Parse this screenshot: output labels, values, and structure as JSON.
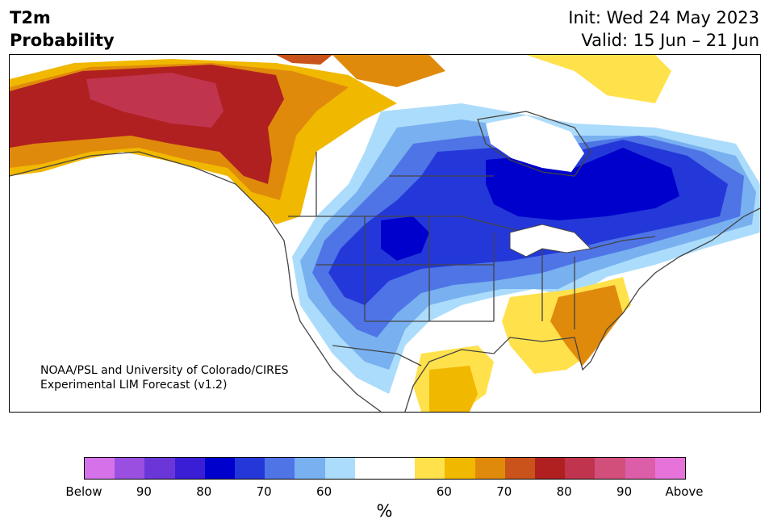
{
  "header": {
    "title_line1": "T2m",
    "title_line2": "Probability",
    "init": "Init: Wed 24 May 2023",
    "valid": "Valid: 15 Jun – 21 Jun"
  },
  "map": {
    "credit_line1": "NOAA/PSL and University of Colorado/CIRES",
    "credit_line2": "Experimental LIM Forecast (v1.2)"
  },
  "colorbar": {
    "colors": [
      "#d572ea",
      "#9a4fe0",
      "#6a36d8",
      "#3a1ed6",
      "#0000cc",
      "#2438d9",
      "#4e74e6",
      "#78b0f0",
      "#acdcfb",
      "#ffffff",
      "#ffffff",
      "#ffe14c",
      "#f1b800",
      "#e08a0c",
      "#c9531a",
      "#b02020",
      "#c0344e",
      "#d24f7c",
      "#dc5ea8",
      "#e673da"
    ],
    "labels": [
      "Below",
      "90",
      "80",
      "70",
      "60",
      "60",
      "70",
      "80",
      "90",
      "Above"
    ],
    "unit": "%"
  }
}
